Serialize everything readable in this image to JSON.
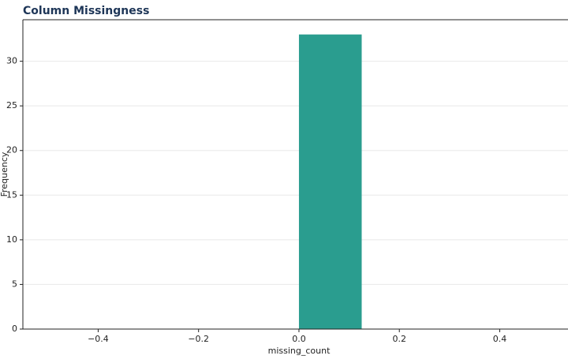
{
  "chart_data": {
    "type": "histogram",
    "title": "Column Missingness",
    "x_label": "missing_count",
    "y_label": "Frequency",
    "bins": [
      0,
      0.125
    ],
    "values": [
      33
    ],
    "color": "#2a9d8f",
    "xlim": [
      -0.55,
      0.536
    ],
    "ylim": [
      0,
      34.65
    ],
    "xticks": [
      {
        "value": -0.4,
        "label": "−0.4"
      },
      {
        "value": -0.2,
        "label": "−0.2"
      },
      {
        "value": 0,
        "label": "0.0"
      },
      {
        "value": 0.2,
        "label": "0.2"
      },
      {
        "value": 0.4,
        "label": "0.4"
      }
    ],
    "yticks": [
      0,
      5,
      10,
      15,
      20,
      25,
      30
    ],
    "grid": true
  }
}
